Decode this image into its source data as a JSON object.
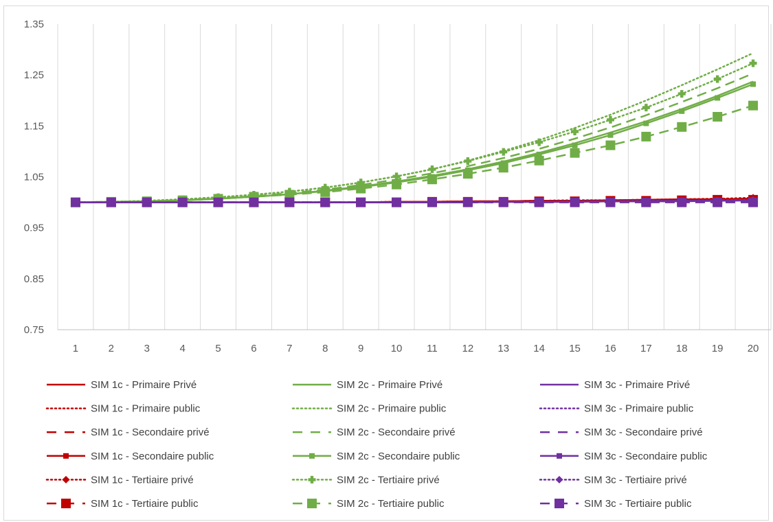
{
  "chart_data": {
    "type": "line",
    "title": "",
    "xlabel": "",
    "ylabel": "",
    "x": [
      1,
      2,
      3,
      4,
      5,
      6,
      7,
      8,
      9,
      10,
      11,
      12,
      13,
      14,
      15,
      16,
      17,
      18,
      19,
      20
    ],
    "ylim": [
      0.75,
      1.35
    ],
    "yticks": [
      "0.75",
      "0.85",
      "0.95",
      "1.05",
      "1.15",
      "1.25",
      "1.35"
    ],
    "grid": "vertical",
    "legend_position": "bottom",
    "colors": {
      "sim1c": "#c00000",
      "sim2c": "#70ad47",
      "sim3c": "#7030a0"
    },
    "series": [
      {
        "name": "SIM 1c - Primaire Privé",
        "group": "sim1c",
        "dash": "solid",
        "marker": "none",
        "values": [
          1,
          1,
          1,
          1,
          1,
          1,
          1,
          1,
          1,
          1.001,
          1.001,
          1.002,
          1.002,
          1.003,
          1.003,
          1.004,
          1.004,
          1.005,
          1.006,
          1.007
        ]
      },
      {
        "name": "SIM 1c - Primaire public",
        "group": "sim1c",
        "dash": "dotted",
        "marker": "none",
        "values": [
          1,
          1,
          1,
          1,
          1,
          1,
          1,
          1,
          1,
          1.001,
          1.001,
          1.002,
          1.002,
          1.003,
          1.004,
          1.004,
          1.005,
          1.006,
          1.007,
          1.008
        ]
      },
      {
        "name": "SIM 1c - Secondaire privé",
        "group": "sim1c",
        "dash": "dashed",
        "marker": "none",
        "values": [
          1,
          1,
          1,
          1,
          1,
          1,
          1,
          1,
          1,
          1,
          1.001,
          1.001,
          1.002,
          1.002,
          1.003,
          1.003,
          1.004,
          1.004,
          1.005,
          1.006
        ]
      },
      {
        "name": "SIM 1c - Secondaire public",
        "group": "sim1c",
        "dash": "solid",
        "marker": "square-small",
        "values": [
          1,
          1,
          1,
          1,
          1,
          1,
          1,
          1,
          1,
          1.001,
          1.001,
          1.002,
          1.002,
          1.003,
          1.003,
          1.004,
          1.005,
          1.006,
          1.006,
          1.007
        ]
      },
      {
        "name": "SIM 1c - Tertiaire privé",
        "group": "sim1c",
        "dash": "dotted",
        "marker": "diamond",
        "values": [
          1,
          1,
          1,
          1,
          1,
          1,
          1,
          1,
          1,
          1.001,
          1.001,
          1.002,
          1.002,
          1.003,
          1.004,
          1.004,
          1.005,
          1.006,
          1.007,
          1.009
        ]
      },
      {
        "name": "SIM 1c - Tertiaire public",
        "group": "sim1c",
        "dash": "dashed",
        "marker": "square-large",
        "values": [
          1,
          1,
          1,
          1,
          1,
          1,
          1,
          1,
          1,
          1,
          1.001,
          1.001,
          1.001,
          1.002,
          1.002,
          1.003,
          1.003,
          1.004,
          1.005,
          1.005
        ]
      },
      {
        "name": "SIM 2c - Primaire Privé",
        "group": "sim2c",
        "dash": "solid",
        "marker": "none",
        "values": [
          1,
          1.001,
          1.002,
          1.004,
          1.007,
          1.011,
          1.016,
          1.023,
          1.031,
          1.041,
          1.052,
          1.065,
          1.08,
          1.097,
          1.116,
          1.137,
          1.159,
          1.183,
          1.209,
          1.237
        ]
      },
      {
        "name": "SIM 2c - Primaire public",
        "group": "sim2c",
        "dash": "dotted",
        "marker": "none",
        "values": [
          1,
          1.001,
          1.003,
          1.006,
          1.01,
          1.015,
          1.021,
          1.029,
          1.039,
          1.051,
          1.065,
          1.082,
          1.101,
          1.122,
          1.146,
          1.172,
          1.2,
          1.23,
          1.261,
          1.293
        ]
      },
      {
        "name": "SIM 2c - Secondaire privé",
        "group": "sim2c",
        "dash": "dashed",
        "marker": "none",
        "values": [
          1,
          1.001,
          1.002,
          1.004,
          1.008,
          1.012,
          1.018,
          1.025,
          1.034,
          1.045,
          1.057,
          1.071,
          1.087,
          1.105,
          1.125,
          1.147,
          1.171,
          1.197,
          1.224,
          1.253
        ]
      },
      {
        "name": "SIM 2c - Secondaire public",
        "group": "sim2c",
        "dash": "solid",
        "marker": "square-small",
        "values": [
          1,
          1.001,
          1.002,
          1.004,
          1.007,
          1.011,
          1.016,
          1.022,
          1.03,
          1.039,
          1.05,
          1.063,
          1.077,
          1.094,
          1.112,
          1.132,
          1.155,
          1.179,
          1.205,
          1.232
        ]
      },
      {
        "name": "SIM 2c - Tertiaire privé",
        "group": "sim2c",
        "dash": "dotted",
        "marker": "cross",
        "values": [
          1,
          1.001,
          1.003,
          1.006,
          1.01,
          1.015,
          1.021,
          1.029,
          1.039,
          1.051,
          1.065,
          1.081,
          1.099,
          1.118,
          1.139,
          1.162,
          1.186,
          1.213,
          1.242,
          1.273
        ]
      },
      {
        "name": "SIM 2c - Tertiaire public",
        "group": "sim2c",
        "dash": "dashed",
        "marker": "square-large",
        "values": [
          1,
          1.001,
          1.002,
          1.004,
          1.007,
          1.011,
          1.015,
          1.02,
          1.027,
          1.035,
          1.045,
          1.056,
          1.068,
          1.082,
          1.097,
          1.112,
          1.129,
          1.148,
          1.168,
          1.19
        ]
      },
      {
        "name": "SIM 3c - Primaire Privé",
        "group": "sim3c",
        "dash": "solid",
        "marker": "none",
        "values": [
          1,
          1,
          1,
          1,
          1,
          1,
          1,
          1,
          1,
          1,
          1,
          1,
          1.001,
          1.001,
          1.001,
          1.002,
          1.002,
          1.003,
          1.003,
          1.004
        ]
      },
      {
        "name": "SIM 3c - Primaire public",
        "group": "sim3c",
        "dash": "dotted",
        "marker": "none",
        "values": [
          1,
          1,
          1,
          1,
          1,
          1,
          1,
          1,
          1,
          1,
          1,
          1.001,
          1.001,
          1.001,
          1.002,
          1.002,
          1.003,
          1.003,
          1.004,
          1.005
        ]
      },
      {
        "name": "SIM 3c - Secondaire privé",
        "group": "sim3c",
        "dash": "dashed",
        "marker": "none",
        "values": [
          1,
          1,
          1,
          1,
          1,
          1,
          1,
          1,
          1,
          1,
          1,
          1,
          1,
          1.001,
          1.001,
          1.001,
          1.002,
          1.002,
          1.003,
          1.003
        ]
      },
      {
        "name": "SIM 3c - Secondaire public",
        "group": "sim3c",
        "dash": "solid",
        "marker": "square-small",
        "values": [
          1,
          1,
          1,
          1,
          1,
          1,
          1,
          1,
          1,
          1,
          1,
          1,
          1.001,
          1.001,
          1.001,
          1.002,
          1.002,
          1.002,
          1.003,
          1.004
        ]
      },
      {
        "name": "SIM 3c - Tertiaire privé",
        "group": "sim3c",
        "dash": "dotted",
        "marker": "diamond",
        "values": [
          1,
          1,
          1,
          1,
          1,
          1,
          1,
          1,
          1,
          1,
          1,
          1.001,
          1.001,
          1.001,
          1.002,
          1.002,
          1.003,
          1.003,
          1.004,
          1.005
        ]
      },
      {
        "name": "SIM 3c - Tertiaire public",
        "group": "sim3c",
        "dash": "dashed",
        "marker": "square-large",
        "values": [
          1,
          1,
          1,
          1,
          1,
          1,
          1,
          1,
          1,
          1,
          1,
          1,
          1,
          1,
          1,
          1,
          1,
          1,
          1,
          1
        ]
      }
    ]
  }
}
